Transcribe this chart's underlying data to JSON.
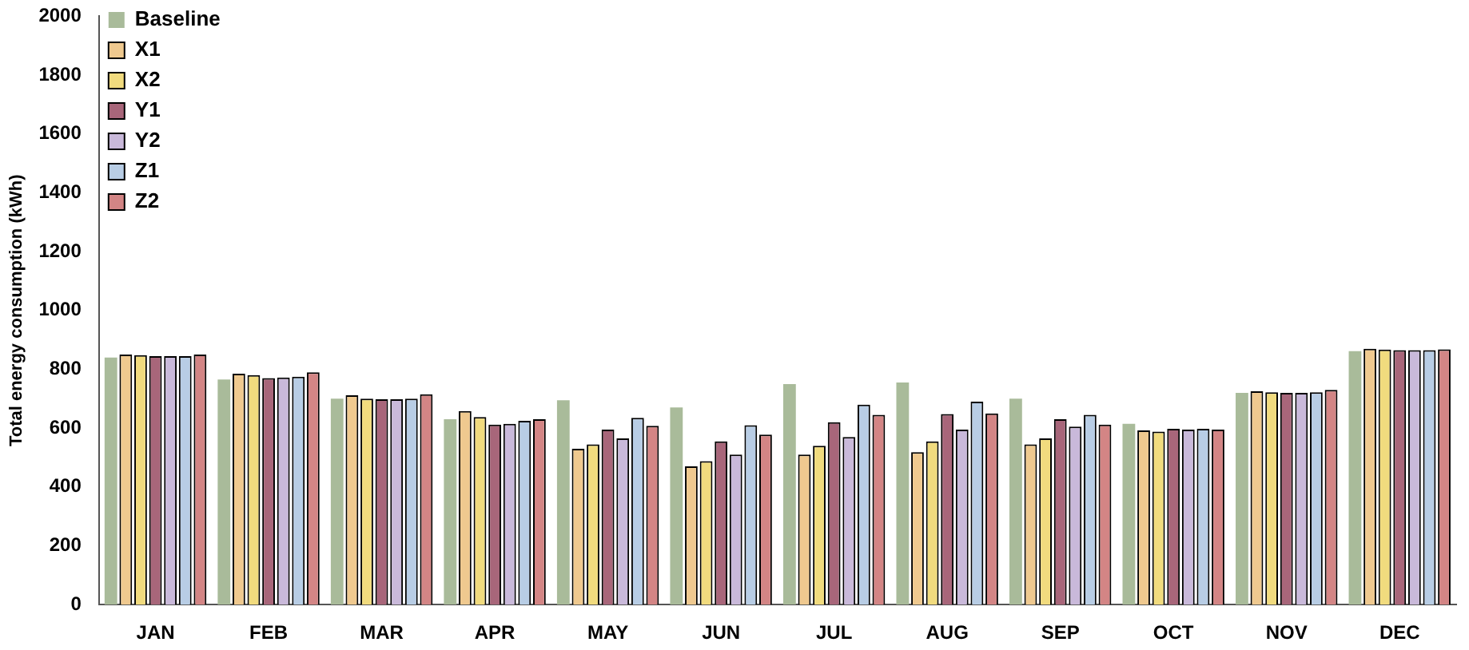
{
  "chart_data": {
    "type": "bar",
    "ylabel": "Total energy consumption (kWh)",
    "categories": [
      "JAN",
      "FEB",
      "MAR",
      "APR",
      "MAY",
      "JUN",
      "JUL",
      "AUG",
      "SEP",
      "OCT",
      "NOV",
      "DEC"
    ],
    "series": [
      {
        "name": "Baseline",
        "color": "#a9bb9a",
        "values": [
          840,
          765,
          700,
          630,
          695,
          670,
          750,
          755,
          700,
          615,
          720,
          862
        ]
      },
      {
        "name": "X1",
        "color": "#efc98f",
        "values": [
          850,
          785,
          712,
          658,
          530,
          470,
          510,
          518,
          545,
          592,
          725,
          870
        ]
      },
      {
        "name": "X2",
        "color": "#f1db7e",
        "values": [
          848,
          780,
          700,
          638,
          545,
          488,
          540,
          555,
          565,
          588,
          722,
          867
        ]
      },
      {
        "name": "Y1",
        "color": "#a8667a",
        "values": [
          845,
          770,
          698,
          612,
          595,
          555,
          620,
          648,
          630,
          598,
          720,
          865
        ]
      },
      {
        "name": "Y2",
        "color": "#c9b9da",
        "values": [
          845,
          772,
          698,
          615,
          565,
          510,
          570,
          595,
          605,
          595,
          720,
          865
        ]
      },
      {
        "name": "Z1",
        "color": "#b8cde5",
        "values": [
          845,
          775,
          700,
          625,
          635,
          610,
          680,
          690,
          645,
          598,
          722,
          865
        ]
      },
      {
        "name": "Z2",
        "color": "#d38585",
        "values": [
          850,
          790,
          715,
          630,
          608,
          578,
          645,
          650,
          612,
          595,
          730,
          868
        ]
      }
    ],
    "ylim": [
      0,
      2000
    ],
    "yticks": [
      0,
      200,
      400,
      600,
      800,
      1000,
      1200,
      1400,
      1600,
      1800,
      2000
    ],
    "grid": false,
    "legend": "top left"
  }
}
